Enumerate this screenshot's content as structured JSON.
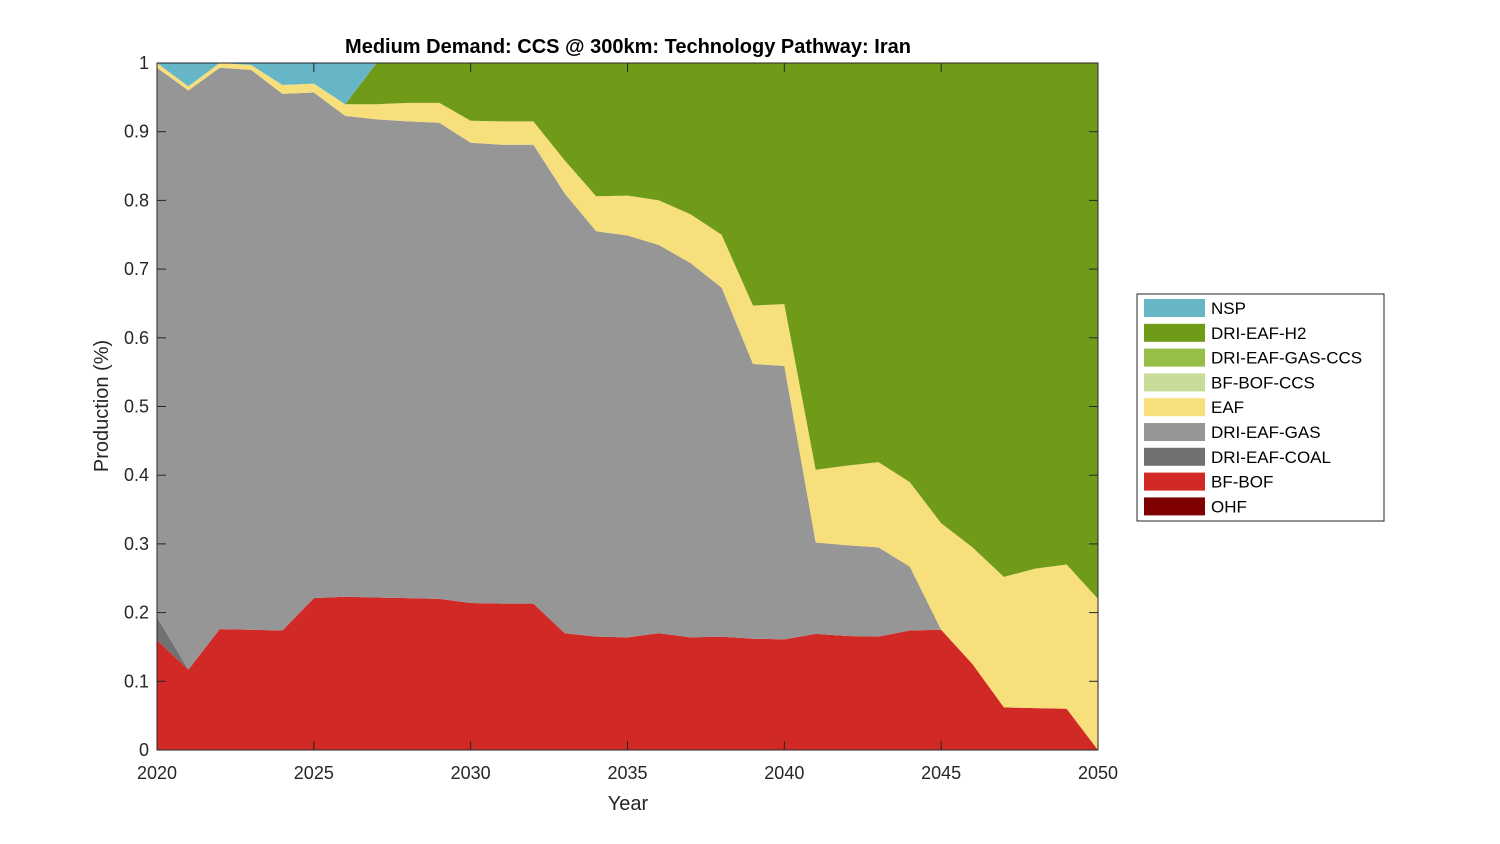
{
  "chart_data": {
    "type": "area",
    "stacked": true,
    "title": "Medium Demand: CCS @ 300km: Technology Pathway: Iran",
    "xlabel": "Year",
    "ylabel": "Production (%)",
    "xlim": [
      2020,
      2050
    ],
    "ylim": [
      0,
      1
    ],
    "x_ticks": [
      "2020",
      "2025",
      "2030",
      "2035",
      "2040",
      "2045",
      "2050"
    ],
    "y_ticks": [
      "0",
      "0.1",
      "0.2",
      "0.3",
      "0.4",
      "0.5",
      "0.6",
      "0.7",
      "0.8",
      "0.9",
      "1"
    ],
    "grid": false,
    "legend_position": "right",
    "x": [
      2020,
      2021,
      2022,
      2023,
      2024,
      2025,
      2026,
      2027,
      2028,
      2029,
      2030,
      2031,
      2032,
      2033,
      2034,
      2035,
      2036,
      2037,
      2038,
      2039,
      2040,
      2041,
      2042,
      2043,
      2044,
      2045,
      2046,
      2047,
      2048,
      2049,
      2050
    ],
    "series": [
      {
        "name": "OHF",
        "color": "#7f0000",
        "values": [
          0,
          0,
          0,
          0,
          0,
          0,
          0,
          0,
          0,
          0,
          0,
          0,
          0,
          0,
          0,
          0,
          0,
          0,
          0,
          0,
          0,
          0,
          0,
          0,
          0,
          0,
          0,
          0,
          0,
          0,
          0
        ]
      },
      {
        "name": "BF-BOF",
        "color": "#d02926",
        "values": [
          0.16,
          0.117,
          0.176,
          0.175,
          0.174,
          0.221,
          0.223,
          0.222,
          0.221,
          0.22,
          0.214,
          0.213,
          0.213,
          0.17,
          0.165,
          0.164,
          0.17,
          0.164,
          0.165,
          0.162,
          0.161,
          0.169,
          0.166,
          0.165,
          0.174,
          0.175,
          0.125,
          0.062,
          0.061,
          0.06,
          0
        ]
      },
      {
        "name": "DRI-EAF-COAL",
        "color": "#717171",
        "values": [
          0.033,
          0,
          0,
          0,
          0,
          0,
          0,
          0,
          0,
          0,
          0,
          0,
          0,
          0,
          0,
          0,
          0,
          0,
          0,
          0,
          0,
          0,
          0,
          0,
          0,
          0,
          0,
          0,
          0,
          0,
          0
        ]
      },
      {
        "name": "DRI-EAF-GAS",
        "color": "#969696",
        "values": [
          0.8,
          0.843,
          0.817,
          0.815,
          0.781,
          0.736,
          0.7,
          0.696,
          0.694,
          0.693,
          0.67,
          0.668,
          0.668,
          0.64,
          0.59,
          0.585,
          0.565,
          0.545,
          0.508,
          0.4,
          0.398,
          0.133,
          0.132,
          0.13,
          0.093,
          0,
          0,
          0,
          0,
          0,
          0
        ]
      },
      {
        "name": "EAF",
        "color": "#f7df7b",
        "values": [
          0.007,
          0.006,
          0.007,
          0.007,
          0.013,
          0.013,
          0.017,
          0.022,
          0.027,
          0.029,
          0.032,
          0.034,
          0.034,
          0.048,
          0.051,
          0.058,
          0.065,
          0.071,
          0.077,
          0.085,
          0.09,
          0.106,
          0.116,
          0.124,
          0.123,
          0.155,
          0.17,
          0.19,
          0.203,
          0.21,
          0.22
        ]
      },
      {
        "name": "BF-BOF-CCS",
        "color": "#c7dc98",
        "values": [
          0,
          0,
          0,
          0,
          0,
          0,
          0,
          0,
          0,
          0,
          0,
          0,
          0,
          0,
          0,
          0,
          0,
          0,
          0,
          0,
          0,
          0,
          0,
          0,
          0,
          0,
          0,
          0,
          0,
          0,
          0
        ]
      },
      {
        "name": "DRI-EAF-GAS-CCS",
        "color": "#97bf47",
        "values": [
          0,
          0,
          0,
          0,
          0,
          0,
          0,
          0,
          0,
          0,
          0,
          0,
          0,
          0,
          0,
          0,
          0,
          0,
          0,
          0,
          0,
          0,
          0,
          0,
          0,
          0,
          0,
          0,
          0,
          0,
          0
        ]
      },
      {
        "name": "DRI-EAF-H2",
        "color": "#709b19",
        "values": [
          0,
          0,
          0,
          0,
          0,
          0,
          0,
          0.06,
          0.058,
          0.058,
          0.084,
          0.085,
          0.085,
          0.142,
          0.194,
          0.193,
          0.2,
          0.22,
          0.25,
          0.353,
          0.351,
          0.592,
          0.586,
          0.581,
          0.61,
          0.67,
          0.705,
          0.748,
          0.736,
          0.73,
          0.78
        ]
      },
      {
        "name": "NSP",
        "color": "#67b6c7",
        "values": [
          0,
          0.034,
          0,
          0.003,
          0.032,
          0.03,
          0.06,
          0,
          0,
          0,
          0,
          0,
          0,
          0,
          0,
          0,
          0,
          0,
          0,
          0,
          0,
          0,
          0,
          0,
          0,
          0,
          0,
          0,
          0,
          0,
          0
        ]
      }
    ],
    "legend_order": [
      "NSP",
      "DRI-EAF-H2",
      "DRI-EAF-GAS-CCS",
      "BF-BOF-CCS",
      "EAF",
      "DRI-EAF-GAS",
      "DRI-EAF-COAL",
      "BF-BOF",
      "OHF"
    ]
  }
}
